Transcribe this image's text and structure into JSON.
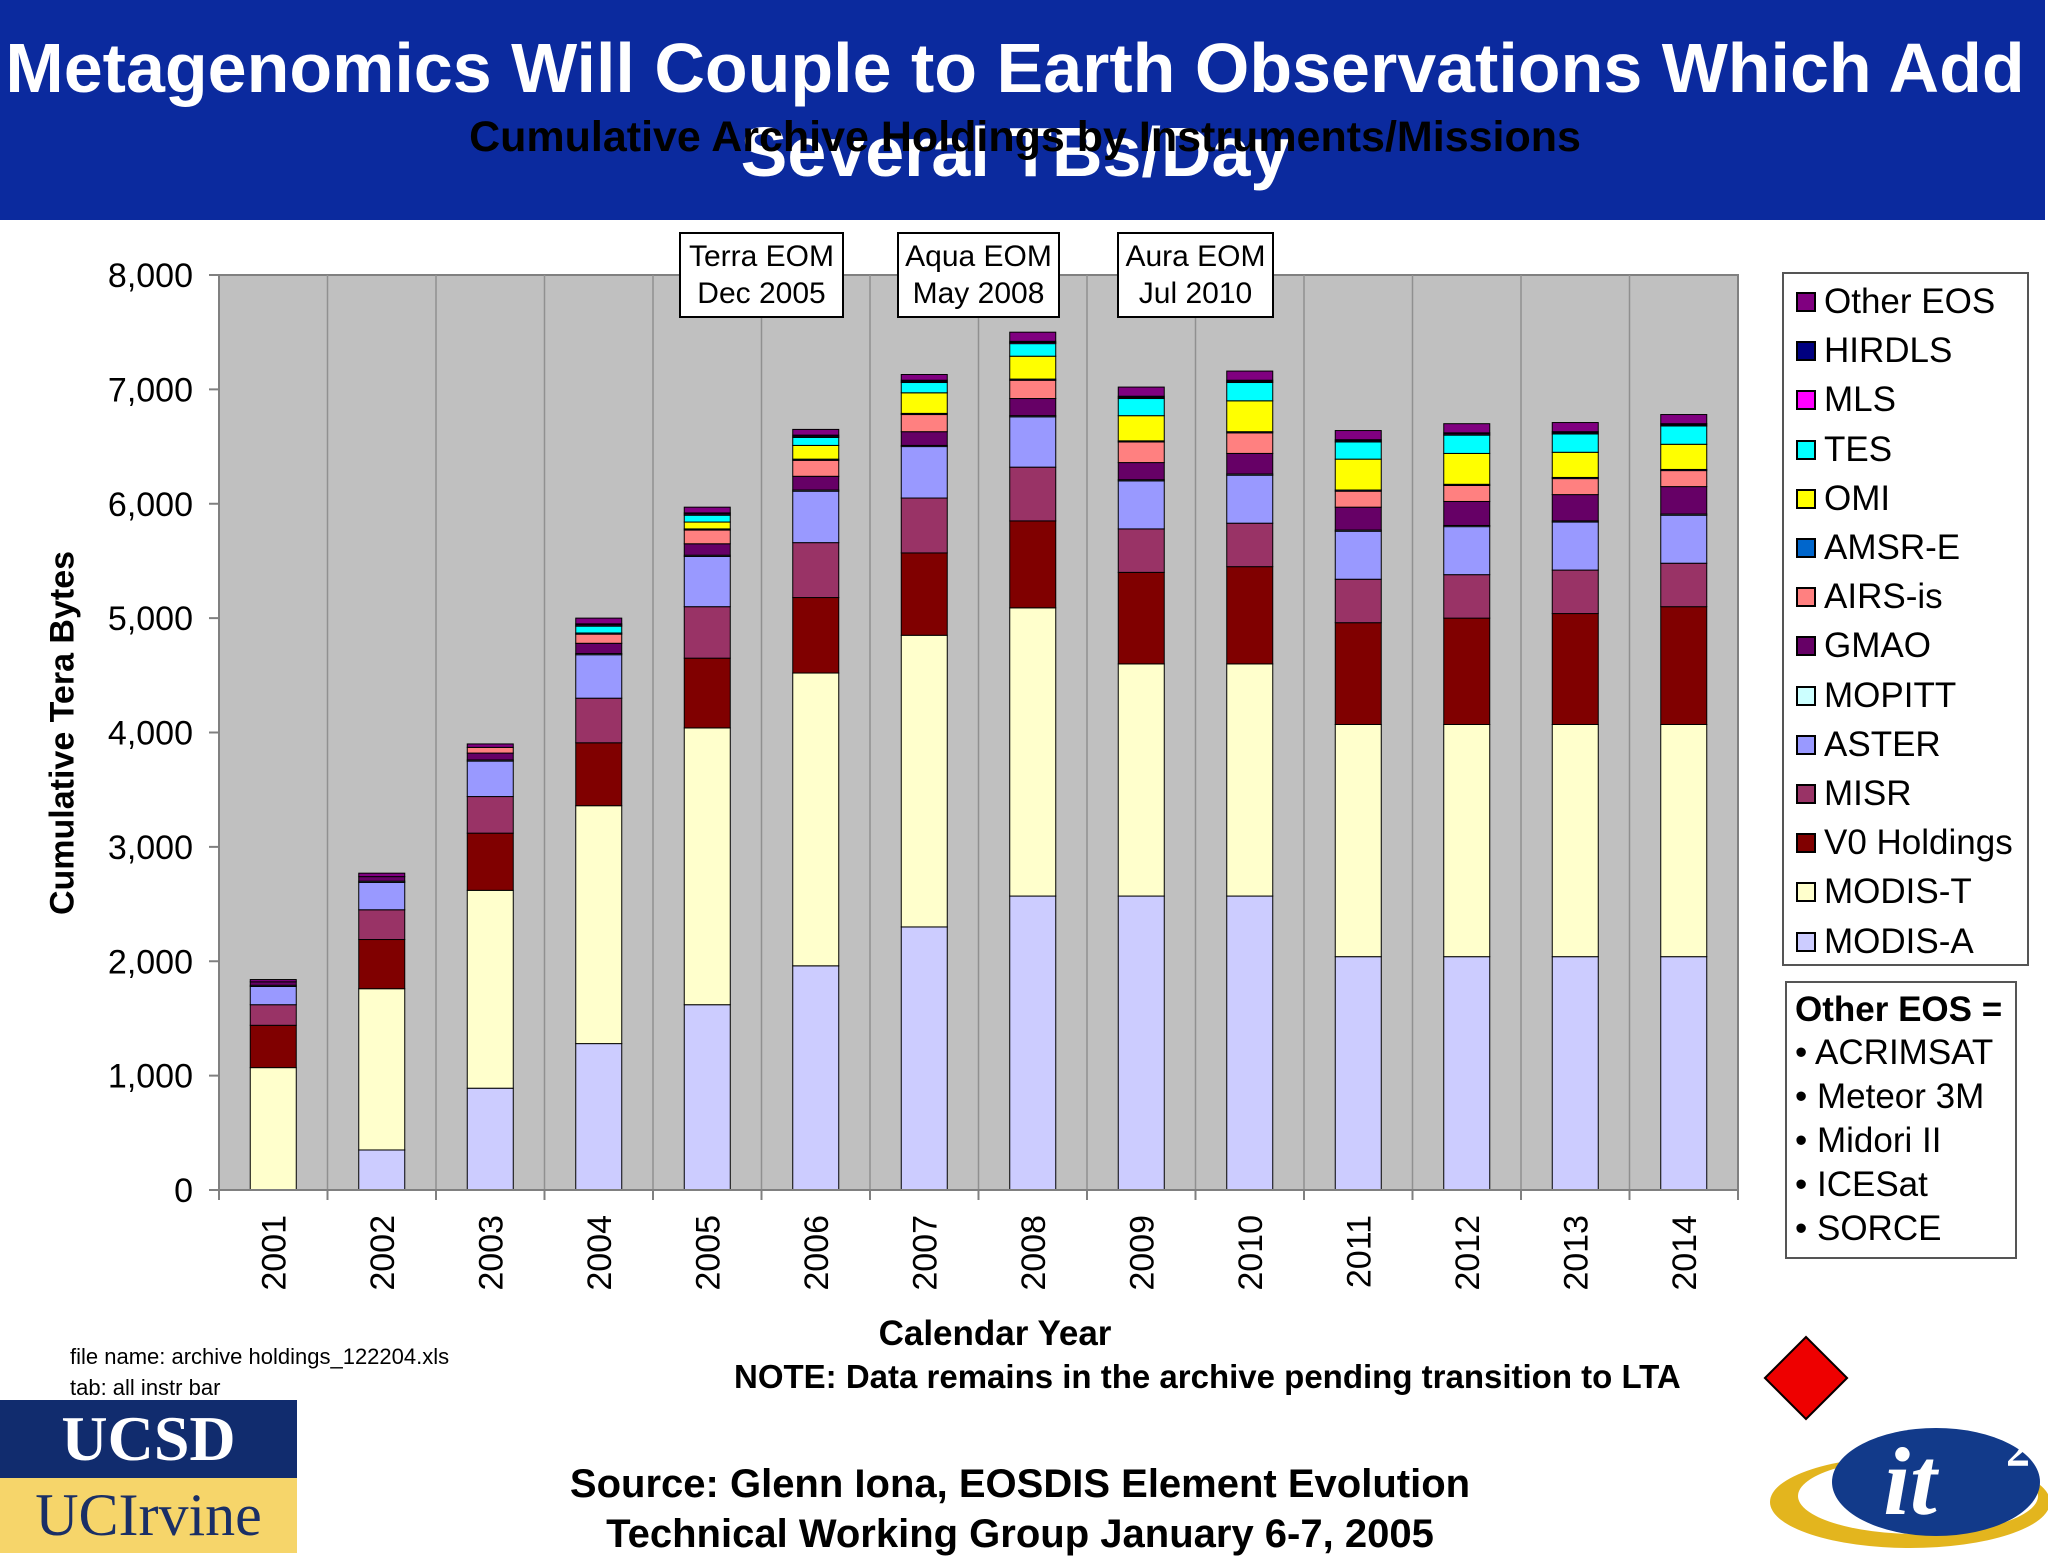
{
  "slide": {
    "title": "Metagenomics Will Couple to Earth Observations Which Add Several TBs/Day"
  },
  "chart_data": {
    "type": "bar",
    "stacked": true,
    "title": "Cumulative Archive Holdings by Instruments/Missions",
    "xlabel": "Calendar Year",
    "ylabel": "Cumulative Tera Bytes",
    "ylim": [
      0,
      8000
    ],
    "yticks": [
      "0",
      "1,000",
      "2,000",
      "3,000",
      "4,000",
      "5,000",
      "6,000",
      "7,000",
      "8,000"
    ],
    "grid": true,
    "legend_position": "right",
    "categories": [
      "2001",
      "2002",
      "2003",
      "2004",
      "2005",
      "2006",
      "2007",
      "2008",
      "2009",
      "2010",
      "2011",
      "2012",
      "2013",
      "2014"
    ],
    "series": [
      {
        "name": "MODIS-A",
        "color": "#ccccff",
        "values": [
          0,
          350,
          890,
          1280,
          1620,
          1960,
          2300,
          2570,
          2570,
          2570,
          2040,
          2040,
          2040,
          2040
        ]
      },
      {
        "name": "MODIS-T",
        "color": "#ffffcc",
        "values": [
          1070,
          1410,
          1730,
          2080,
          2420,
          2560,
          2550,
          2520,
          2030,
          2030,
          2030,
          2030,
          2030,
          2030
        ]
      },
      {
        "name": "V0 Holdings",
        "color": "#800000",
        "values": [
          370,
          430,
          500,
          550,
          610,
          660,
          720,
          760,
          800,
          850,
          890,
          930,
          970,
          1030
        ]
      },
      {
        "name": "MISR",
        "color": "#993366",
        "values": [
          180,
          260,
          320,
          390,
          450,
          480,
          480,
          470,
          380,
          380,
          380,
          380,
          380,
          380
        ]
      },
      {
        "name": "ASTER",
        "color": "#9999ff",
        "values": [
          160,
          240,
          310,
          380,
          440,
          450,
          450,
          440,
          420,
          420,
          420,
          420,
          420,
          420
        ]
      },
      {
        "name": "MOPITT",
        "color": "#ccffff",
        "values": [
          10,
          10,
          10,
          10,
          10,
          10,
          10,
          10,
          10,
          10,
          10,
          10,
          10,
          10
        ]
      },
      {
        "name": "GMAO",
        "color": "#660066",
        "values": [
          30,
          40,
          60,
          90,
          100,
          120,
          120,
          150,
          150,
          180,
          200,
          210,
          230,
          240
        ]
      },
      {
        "name": "AIRS-is",
        "color": "#ff8080",
        "values": [
          0,
          0,
          50,
          80,
          120,
          140,
          150,
          160,
          180,
          180,
          140,
          140,
          140,
          140
        ]
      },
      {
        "name": "AMSR-E",
        "color": "#0066cc",
        "values": [
          0,
          0,
          0,
          10,
          10,
          10,
          10,
          10,
          10,
          10,
          10,
          10,
          10,
          10
        ]
      },
      {
        "name": "OMI",
        "color": "#ffff00",
        "values": [
          0,
          0,
          0,
          0,
          60,
          120,
          180,
          200,
          220,
          270,
          270,
          270,
          220,
          220
        ]
      },
      {
        "name": "TES",
        "color": "#00ffff",
        "values": [
          0,
          0,
          0,
          60,
          60,
          70,
          90,
          110,
          150,
          160,
          150,
          160,
          160,
          160
        ]
      },
      {
        "name": "MLS",
        "color": "#ff00ff",
        "values": [
          0,
          0,
          0,
          10,
          10,
          10,
          10,
          10,
          10,
          10,
          10,
          10,
          10,
          10
        ]
      },
      {
        "name": "HIRDLS",
        "color": "#000080",
        "values": [
          0,
          0,
          0,
          10,
          10,
          10,
          10,
          10,
          10,
          10,
          10,
          10,
          10,
          10
        ]
      },
      {
        "name": "Other EOS",
        "color": "#800080",
        "values": [
          20,
          30,
          30,
          50,
          50,
          50,
          50,
          80,
          80,
          80,
          80,
          80,
          80,
          80
        ]
      }
    ],
    "annotations": [
      {
        "category": "2005",
        "line1": "Terra EOM",
        "line2": "Dec 2005"
      },
      {
        "category": "2007",
        "line1": "Aqua EOM",
        "line2": "May 2008"
      },
      {
        "category": "2009",
        "line1": "Aura EOM",
        "line2": "Jul 2010"
      }
    ]
  },
  "other_eos_note": {
    "title": "Other EOS =",
    "items": [
      "• ACRIMSAT",
      "• Meteor 3M",
      "• Midori II",
      "• ICESat",
      "• SORCE"
    ]
  },
  "note": "NOTE: Data remains in the archive pending transition to LTA",
  "file_info": {
    "file_name": "file name: archive holdings_122204.xls",
    "tab": "tab: all instr bar"
  },
  "source": {
    "line1": "Source: Glenn Iona, EOSDIS Element Evolution",
    "line2": "Technical Working Group January 6-7, 2005"
  },
  "logos": {
    "ucsd": "UCSD",
    "ucirvine": "UCIrvine",
    "it2": "it"
  },
  "colors": {
    "banner": "#0b2a9e",
    "plot_background": "#c0c0c0",
    "lta_marker": "#ee0000"
  }
}
